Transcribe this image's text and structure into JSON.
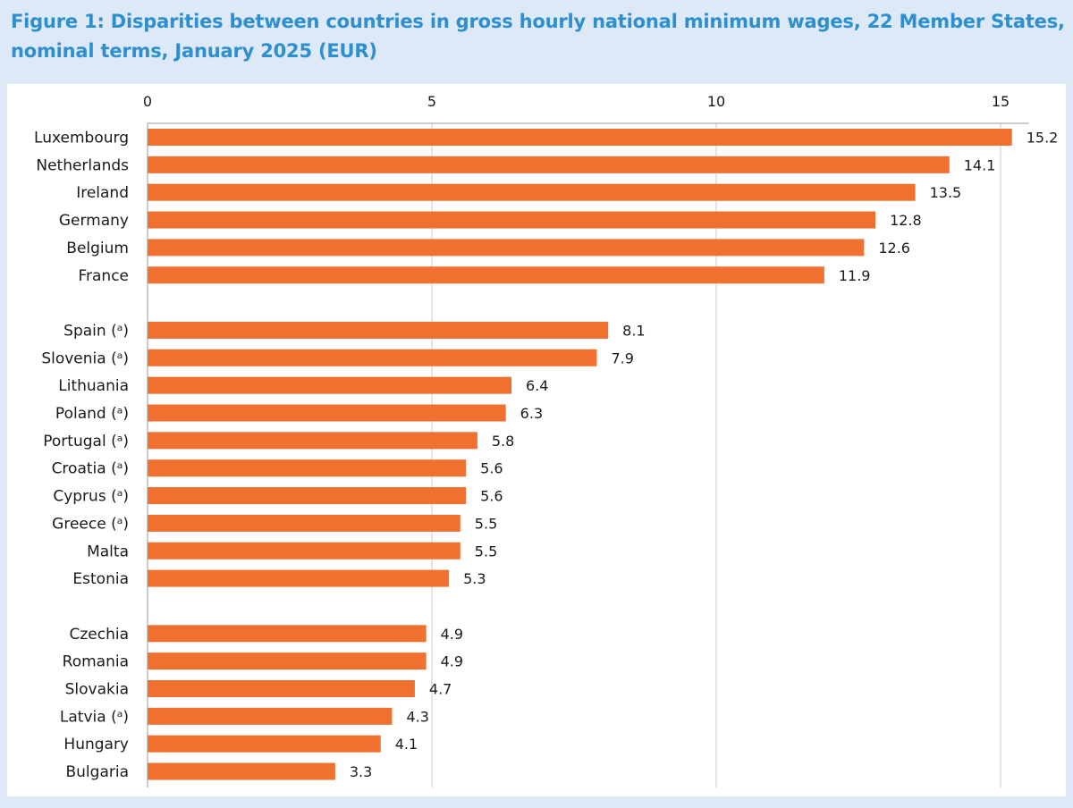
{
  "title_lines": [
    "Figure 1: Disparities between countries in gross hourly national minimum wages, 22 Member States,",
    "nominal terms, January 2025 (EUR)"
  ],
  "chart_data": {
    "type": "bar",
    "orientation": "horizontal",
    "title": "Figure 1: Disparities between countries in gross hourly national minimum wages, 22 Member States, nominal terms, January 2025 (EUR)",
    "xlabel": "",
    "ylabel": "",
    "xlim": [
      0,
      15.5
    ],
    "ticks": [
      0,
      5,
      10,
      15
    ],
    "grid": true,
    "axis_position": "top",
    "bar_color": "#f07030",
    "grid_color": "#c8c8c8",
    "groups": [
      {
        "categories": [
          "Luxembourg",
          "Netherlands",
          "Ireland",
          "Germany",
          "Belgium",
          "France"
        ],
        "values": [
          15.2,
          14.1,
          13.5,
          12.8,
          12.6,
          11.9
        ]
      },
      {
        "categories": [
          "Spain (ᵃ)",
          "Slovenia (ᵃ)",
          "Lithuania",
          "Poland (ᵃ)",
          "Portugal (ᵃ)",
          "Croatia (ᵃ)",
          "Cyprus (ᵃ)",
          "Greece (ᵃ)",
          "Malta",
          "Estonia"
        ],
        "values": [
          8.1,
          7.9,
          6.4,
          6.3,
          5.8,
          5.6,
          5.6,
          5.5,
          5.5,
          5.3
        ]
      },
      {
        "categories": [
          "Czechia",
          "Romania",
          "Slovakia",
          "Latvia (ᵃ)",
          "Hungary",
          "Bulgaria"
        ],
        "values": [
          4.9,
          4.9,
          4.7,
          4.3,
          4.1,
          3.3
        ]
      }
    ]
  }
}
